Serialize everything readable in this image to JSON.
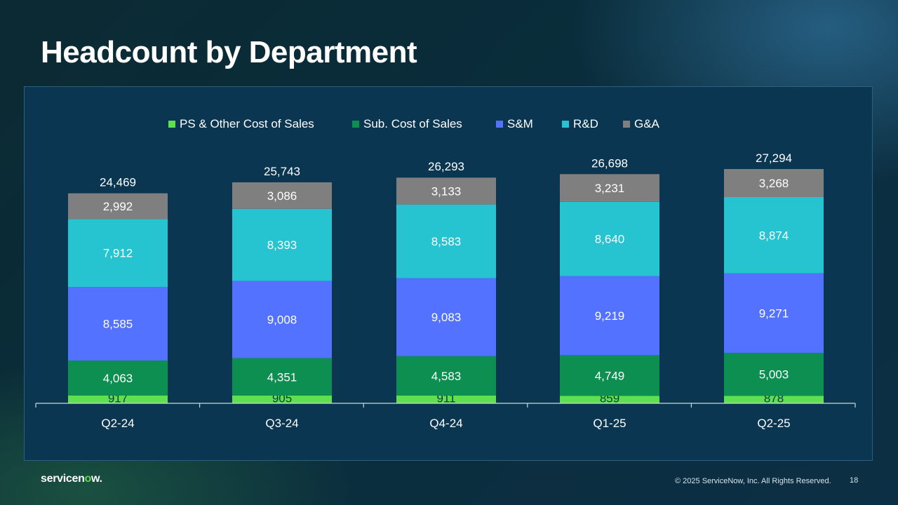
{
  "slide": {
    "title": "Headcount by Department",
    "brand_prefix": "servicen",
    "brand_highlight": "o",
    "brand_suffix": "w.",
    "copyright": "© 2025 ServiceNow, Inc. All Rights Reserved.",
    "page_number": "18"
  },
  "colors": {
    "ps": "#5ee04f",
    "sub": "#0e8f52",
    "sm": "#5272ff",
    "rd": "#26c3d0",
    "ga": "#7f7f7f"
  },
  "chart_data": {
    "type": "bar",
    "stacked": true,
    "title": "Headcount by Department",
    "categories": [
      "Q2-24",
      "Q3-24",
      "Q4-24",
      "Q1-25",
      "Q2-25"
    ],
    "series": [
      {
        "key": "ps",
        "name": "PS & Other Cost of Sales",
        "values": [
          917,
          905,
          911,
          859,
          878
        ],
        "labels": [
          "917",
          "905",
          "911",
          "859",
          "878"
        ]
      },
      {
        "key": "sub",
        "name": "Sub. Cost of Sales",
        "values": [
          4063,
          4351,
          4583,
          4749,
          5003
        ],
        "labels": [
          "4,063",
          "4,351",
          "4,583",
          "4,749",
          "5,003"
        ]
      },
      {
        "key": "sm",
        "name": "S&M",
        "values": [
          8585,
          9008,
          9083,
          9219,
          9271
        ],
        "labels": [
          "8,585",
          "9,008",
          "9,083",
          "9,219",
          "9,271"
        ]
      },
      {
        "key": "rd",
        "name": "R&D",
        "values": [
          7912,
          8393,
          8583,
          8640,
          8874
        ],
        "labels": [
          "7,912",
          "8,393",
          "8,583",
          "8,640",
          "8,874"
        ]
      },
      {
        "key": "ga",
        "name": "G&A",
        "values": [
          2992,
          3086,
          3133,
          3231,
          3268
        ],
        "labels": [
          "2,992",
          "3,086",
          "3,133",
          "3,231",
          "3,268"
        ]
      }
    ],
    "totals": [
      24469,
      25743,
      26293,
      26698,
      27294
    ],
    "total_labels": [
      "24,469",
      "25,743",
      "26,293",
      "26,698",
      "27,294"
    ],
    "legend_position": "top",
    "ylim": [
      0,
      27294
    ],
    "grid": false
  }
}
